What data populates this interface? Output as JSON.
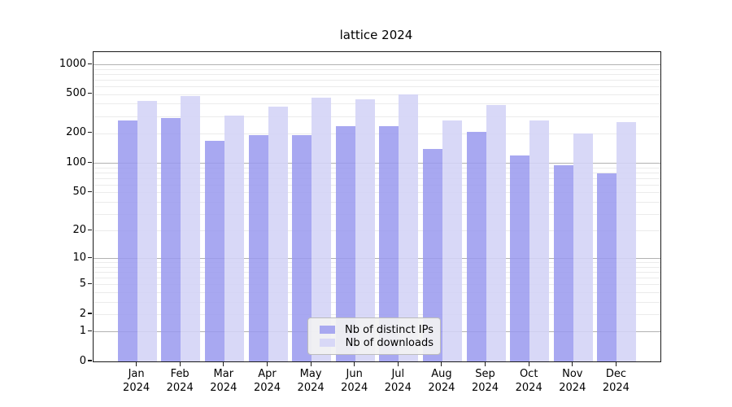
{
  "chart_data": {
    "type": "bar",
    "title": "lattice 2024",
    "categories": [
      "Jan",
      "Feb",
      "Mar",
      "Apr",
      "May",
      "Jun",
      "Jul",
      "Aug",
      "Sep",
      "Oct",
      "Nov",
      "Dec"
    ],
    "x_year_label": "2024",
    "series": [
      {
        "name": "Nb of distinct IPs",
        "color": "#a8a8f0",
        "values": [
          270,
          288,
          168,
          192,
          194,
          238,
          238,
          138,
          206,
          119,
          95,
          79
        ]
      },
      {
        "name": "Nb of downloads",
        "color": "#d8d8f7",
        "values": [
          426,
          477,
          303,
          375,
          457,
          440,
          497,
          270,
          385,
          270,
          199,
          262
        ]
      }
    ],
    "yscale": "log1p",
    "ylim": [
      0,
      1330
    ],
    "y_tick_labels": [
      1000,
      500,
      200,
      100,
      50,
      20,
      10,
      5,
      2,
      1,
      0
    ],
    "y_major_gridlines": [
      1,
      10,
      100,
      1000
    ],
    "grid": "on",
    "legend_position": "lower center (inside plot)",
    "xlabel": "",
    "ylabel": ""
  },
  "colors": {
    "background": "#ffffff",
    "bar_distinct_ips": "#a8a8f0",
    "bar_downloads": "#d8d8f7",
    "gridline_major": "#b2b2b2",
    "gridline_minor": "#ebebeb",
    "spine": "#1a1a1a",
    "legend_background": "#f2f2f2",
    "legend_border": "#bcbcbc"
  }
}
